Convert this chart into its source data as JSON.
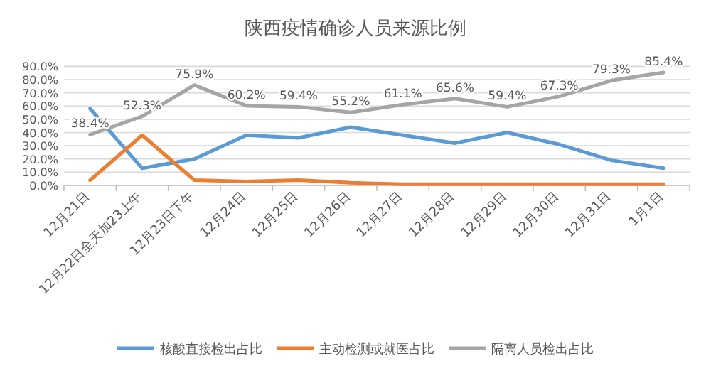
{
  "chart_data": {
    "type": "line",
    "title": "陕西疫情确诊人员来源比例",
    "categories": [
      "12月21日",
      "12月22日全天加23上午",
      "12月23日下午",
      "12月24日",
      "12月25日",
      "12月26日",
      "12月27日",
      "12月28日",
      "12月29日",
      "12月30日",
      "12月31日",
      "1月1日"
    ],
    "series": [
      {
        "name": "核酸直接检出占比",
        "color": "#5b9bd5",
        "values": [
          58,
          13,
          20,
          38,
          36,
          44,
          38,
          32,
          40,
          31,
          19,
          13
        ]
      },
      {
        "name": "主动检测或就医占比",
        "color": "#ed7d31",
        "values": [
          4,
          38,
          4,
          3,
          4,
          2,
          1,
          1,
          1,
          1,
          1,
          1
        ]
      },
      {
        "name": "隔离人员检出占比",
        "color": "#a5a5a5",
        "values": [
          38.4,
          52.3,
          75.9,
          60.2,
          59.4,
          55.2,
          61.1,
          65.6,
          59.4,
          67.3,
          79.3,
          85.4
        ],
        "value_labels": [
          "38.4%",
          "52.3%",
          "75.9%",
          "60.2%",
          "59.4%",
          "55.2%",
          "61.1%",
          "65.6%",
          "59.4%",
          "67.3%",
          "79.3%",
          "85.4%"
        ]
      }
    ],
    "ylim": [
      0,
      90
    ],
    "yticks": [
      {
        "value": 0,
        "label": "0.0%"
      },
      {
        "value": 10,
        "label": "10.0%"
      },
      {
        "value": 20,
        "label": "20.0%"
      },
      {
        "value": 30,
        "label": "30.0%"
      },
      {
        "value": 40,
        "label": "40.0%"
      },
      {
        "value": 50,
        "label": "50.0%"
      },
      {
        "value": 60,
        "label": "60.0%"
      },
      {
        "value": 70,
        "label": "70.0%"
      },
      {
        "value": 80,
        "label": "80.0%"
      },
      {
        "value": 90,
        "label": "90.0%"
      }
    ],
    "grid": "y",
    "legend": "bottom",
    "marker": "none",
    "line_style": "solid"
  }
}
